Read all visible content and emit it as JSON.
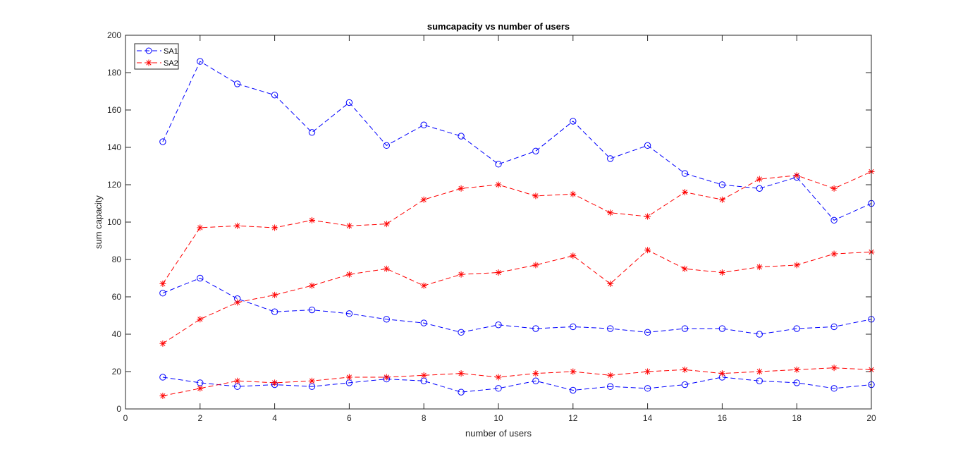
{
  "chart_data": {
    "type": "line",
    "title": "sumcapacity vs number of users",
    "xlabel": "number of users",
    "ylabel": "sum capacity",
    "xlim": [
      0,
      20
    ],
    "ylim": [
      0,
      200
    ],
    "xticks": [
      0,
      2,
      4,
      6,
      8,
      10,
      12,
      14,
      16,
      18,
      20
    ],
    "yticks": [
      0,
      20,
      40,
      60,
      80,
      100,
      120,
      140,
      160,
      180,
      200
    ],
    "grid": false,
    "legend_position": "top-left",
    "legend": [
      {
        "label": "SA1",
        "color": "#0000ff",
        "marker": "circle"
      },
      {
        "label": "SA2",
        "color": "#ff0000",
        "marker": "asterisk"
      }
    ],
    "x": [
      1,
      2,
      3,
      4,
      5,
      6,
      7,
      8,
      9,
      10,
      11,
      12,
      13,
      14,
      15,
      16,
      17,
      18,
      19,
      20
    ],
    "series": [
      {
        "name": "SA1",
        "color": "#0000ff",
        "marker": "circle",
        "values": [
          143,
          186,
          174,
          168,
          148,
          164,
          141,
          152,
          146,
          131,
          138,
          154,
          134,
          141,
          126,
          120,
          118,
          124,
          101,
          110
        ]
      },
      {
        "name": "SA1",
        "color": "#0000ff",
        "marker": "circle",
        "values": [
          62,
          70,
          59,
          52,
          53,
          51,
          48,
          46,
          41,
          45,
          43,
          44,
          43,
          41,
          43,
          43,
          40,
          43,
          44,
          48
        ]
      },
      {
        "name": "SA1",
        "color": "#0000ff",
        "marker": "circle",
        "values": [
          17,
          14,
          12,
          13,
          12,
          14,
          16,
          15,
          9,
          11,
          15,
          10,
          12,
          11,
          13,
          17,
          15,
          14,
          11,
          13
        ]
      },
      {
        "name": "SA2",
        "color": "#ff0000",
        "marker": "asterisk",
        "values": [
          67,
          97,
          98,
          97,
          101,
          98,
          99,
          112,
          118,
          120,
          114,
          115,
          105,
          103,
          116,
          112,
          123,
          125,
          118,
          127
        ]
      },
      {
        "name": "SA2",
        "color": "#ff0000",
        "marker": "asterisk",
        "values": [
          35,
          48,
          57,
          61,
          66,
          72,
          75,
          66,
          72,
          73,
          77,
          82,
          67,
          85,
          75,
          73,
          76,
          77,
          83,
          84
        ]
      },
      {
        "name": "SA2",
        "color": "#ff0000",
        "marker": "asterisk",
        "values": [
          7,
          11,
          15,
          14,
          15,
          17,
          17,
          18,
          19,
          17,
          19,
          20,
          18,
          20,
          21,
          19,
          20,
          21,
          22,
          21
        ]
      }
    ]
  }
}
